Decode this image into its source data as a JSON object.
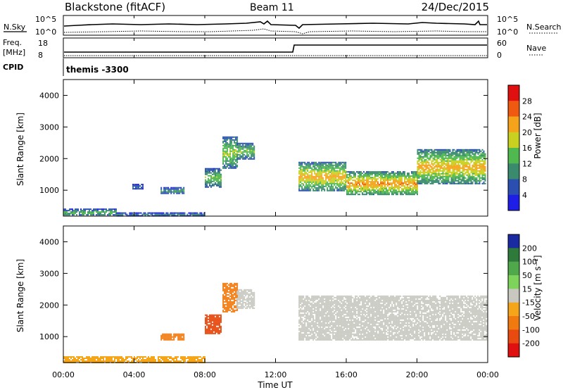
{
  "header": {
    "station": "Blackstone (fitACF)",
    "beam": "Beam 11",
    "date": "24/Dec/2015"
  },
  "noise_panel": {
    "left_label": "N.Sky",
    "right_label": "N.Search",
    "left_ticks": [
      "10^5",
      "10^0"
    ],
    "right_ticks": [
      "10^5",
      "10^0"
    ]
  },
  "freq_panel": {
    "left_label_top": "Freq.",
    "left_label_bottom": "[MHz]",
    "right_label": "Nave",
    "left_ticks": [
      "18",
      "8"
    ],
    "right_ticks": [
      "60",
      "0"
    ]
  },
  "cpid": {
    "label": "CPID",
    "value": "themis -3300"
  },
  "x_axis": {
    "label": "Time UT",
    "ticks": [
      "00:00",
      "04:00",
      "08:00",
      "12:00",
      "16:00",
      "20:00",
      "00:00"
    ]
  },
  "y_axis": {
    "label": "Slant Range [km]",
    "ticks": [
      "1000",
      "2000",
      "3000",
      "4000"
    ]
  },
  "power_scale": {
    "label": "Power [dB]",
    "ticks": [
      "4",
      "8",
      "12",
      "16",
      "20",
      "24",
      "28"
    ],
    "colors": [
      "#1e1ee6",
      "#2a4fb0",
      "#3a8a6e",
      "#4fb84f",
      "#c8d020",
      "#f5a31a",
      "#f05a10",
      "#e01010"
    ]
  },
  "velocity_scale": {
    "label": "Velocity [m s⁻¹]",
    "ticks": [
      "200",
      "100",
      "50",
      "15",
      "-15",
      "-50",
      "-100",
      "-200"
    ],
    "colors": [
      "#1a2aa0",
      "#2e7a3a",
      "#4fa84a",
      "#7ed35a",
      "#c8c8c0",
      "#f5a51a",
      "#f07a10",
      "#e84a10",
      "#e01010"
    ]
  },
  "chart_data": {
    "type": "heatmap",
    "title": "Blackstone (fitACF)",
    "xlabel": "Time UT",
    "ylabel": "Slant Range [km]",
    "xlim": [
      0,
      24
    ],
    "ylim": [
      180,
      4500
    ],
    "x_ticks_hours": [
      0,
      4,
      8,
      12,
      16,
      20,
      24
    ],
    "y_ticks_km": [
      1000,
      2000,
      3000,
      4000
    ],
    "panels": [
      {
        "name": "Power",
        "unit": "dB",
        "range": [
          0,
          30
        ],
        "regions": [
          {
            "t0": 0.0,
            "t1": 3.0,
            "r0": 200,
            "r1": 420,
            "value": 14
          },
          {
            "t0": 3.0,
            "t1": 8.0,
            "r0": 200,
            "r1": 300,
            "value": 10
          },
          {
            "t0": 3.9,
            "t1": 4.5,
            "r0": 1050,
            "r1": 1200,
            "value": 8
          },
          {
            "t0": 5.5,
            "t1": 6.8,
            "r0": 900,
            "r1": 1100,
            "value": 12
          },
          {
            "t0": 8.0,
            "t1": 8.9,
            "r0": 1100,
            "r1": 1700,
            "value": 16
          },
          {
            "t0": 9.0,
            "t1": 9.8,
            "r0": 1700,
            "r1": 2700,
            "value": 18
          },
          {
            "t0": 9.8,
            "t1": 10.8,
            "r0": 2000,
            "r1": 2500,
            "value": 16
          },
          {
            "t0": 13.3,
            "t1": 16.0,
            "r0": 1000,
            "r1": 1900,
            "value": 22
          },
          {
            "t0": 16.0,
            "t1": 20.0,
            "r0": 850,
            "r1": 1600,
            "value": 24
          },
          {
            "t0": 20.0,
            "t1": 23.9,
            "r0": 1200,
            "r1": 2300,
            "value": 22
          }
        ]
      },
      {
        "name": "Velocity",
        "unit": "m/s",
        "range": [
          -200,
          200
        ],
        "regions": [
          {
            "t0": 0.0,
            "t1": 8.0,
            "r0": 200,
            "r1": 380,
            "value": -30
          },
          {
            "t0": 5.5,
            "t1": 6.8,
            "r0": 900,
            "r1": 1100,
            "value": -80
          },
          {
            "t0": 8.0,
            "t1": 8.9,
            "r0": 1100,
            "r1": 1700,
            "value": -120
          },
          {
            "t0": 9.0,
            "t1": 9.8,
            "r0": 1800,
            "r1": 2700,
            "value": -70
          },
          {
            "t0": 9.8,
            "t1": 10.8,
            "r0": 1900,
            "r1": 2500,
            "value": 0
          },
          {
            "t0": 13.3,
            "t1": 23.9,
            "r0": 900,
            "r1": 2300,
            "value": 0
          }
        ]
      }
    ]
  }
}
